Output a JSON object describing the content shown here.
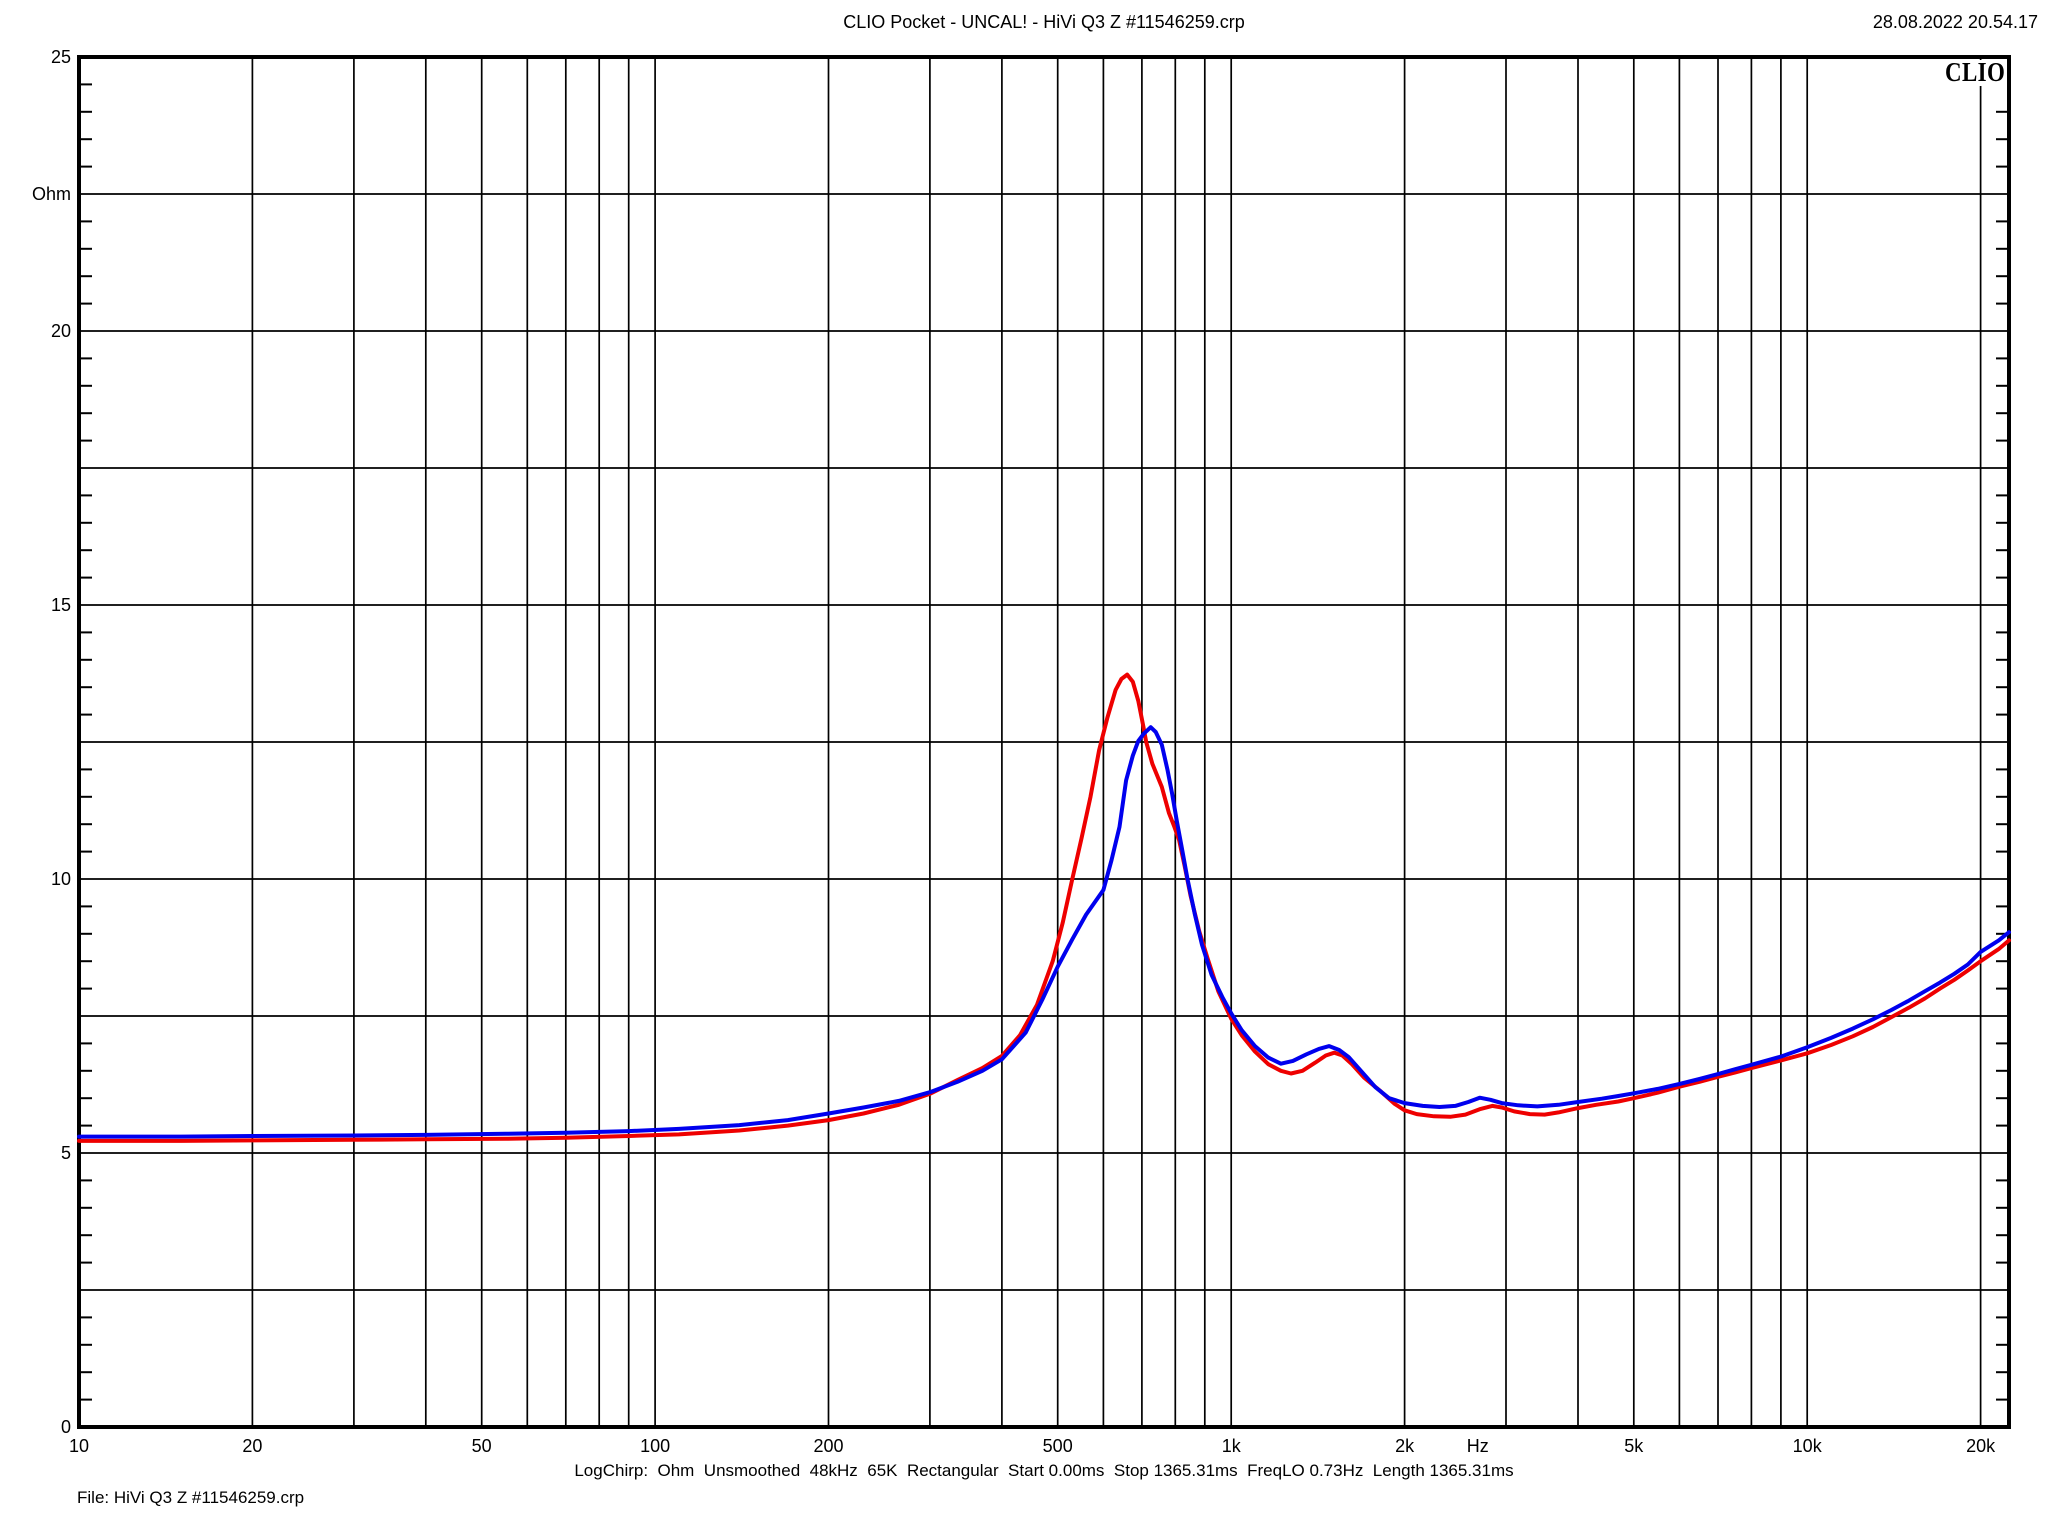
{
  "header": {
    "title": "CLIO Pocket - UNCAL! - HiVi Q3 Z #11546259.crp",
    "datetime": "28.08.2022 20.54.17"
  },
  "logo": {
    "text": "CLIO"
  },
  "footer": {
    "status_line": "LogChirp:  Ohm  Unsmoothed  48kHz  65K  Rectangular  Start 0.00ms  Stop 1365.31ms  FreqLO 0.73Hz  Length 1365.31ms",
    "file_label": "File: HiVi Q3 Z #11546259.crp"
  },
  "chart_data": {
    "type": "line",
    "title": "Impedance magnitude vs frequency",
    "grid": true,
    "legend": false,
    "x_axis": {
      "scale": "log",
      "unit": "Hz",
      "min": 10,
      "max": 22400,
      "unit_label_freq": 2680,
      "tick_labels": [
        [
          "10",
          10
        ],
        [
          "20",
          20
        ],
        [
          "50",
          50
        ],
        [
          "100",
          100
        ],
        [
          "200",
          200
        ],
        [
          "500",
          500
        ],
        [
          "1k",
          1000
        ],
        [
          "2k",
          2000
        ],
        [
          "5k",
          5000
        ],
        [
          "10k",
          10000
        ],
        [
          "20k",
          20000
        ]
      ],
      "gridlines": [
        20,
        30,
        40,
        50,
        60,
        70,
        80,
        90,
        100,
        200,
        300,
        400,
        500,
        600,
        700,
        800,
        900,
        1000,
        2000,
        3000,
        4000,
        5000,
        6000,
        7000,
        8000,
        9000,
        10000,
        20000
      ]
    },
    "y_axis": {
      "scale": "linear",
      "unit": "Ohm",
      "min": 0,
      "max": 25,
      "unit_label_value": 22.5,
      "minor_tick_step": 0.5,
      "tick_labels": [
        [
          "25",
          25
        ],
        [
          "20",
          20
        ],
        [
          "15",
          15
        ],
        [
          "10",
          10
        ],
        [
          "5",
          5
        ],
        [
          "0",
          0
        ]
      ],
      "gridlines": [
        2.5,
        5,
        7.5,
        10,
        12.5,
        15,
        17.5,
        20,
        22.5
      ]
    },
    "series": [
      {
        "name": "red-impedance-curve",
        "color": "#ee0000",
        "points": [
          [
            10,
            5.22
          ],
          [
            15,
            5.22
          ],
          [
            20,
            5.23
          ],
          [
            30,
            5.24
          ],
          [
            40,
            5.25
          ],
          [
            55,
            5.26
          ],
          [
            70,
            5.28
          ],
          [
            90,
            5.31
          ],
          [
            110,
            5.34
          ],
          [
            140,
            5.41
          ],
          [
            170,
            5.5
          ],
          [
            200,
            5.6
          ],
          [
            230,
            5.72
          ],
          [
            265,
            5.88
          ],
          [
            300,
            6.08
          ],
          [
            335,
            6.33
          ],
          [
            370,
            6.55
          ],
          [
            400,
            6.77
          ],
          [
            430,
            7.15
          ],
          [
            460,
            7.7
          ],
          [
            490,
            8.5
          ],
          [
            510,
            9.2
          ],
          [
            530,
            10.0
          ],
          [
            550,
            10.75
          ],
          [
            570,
            11.5
          ],
          [
            590,
            12.35
          ],
          [
            610,
            12.95
          ],
          [
            630,
            13.45
          ],
          [
            645,
            13.65
          ],
          [
            660,
            13.73
          ],
          [
            675,
            13.6
          ],
          [
            690,
            13.25
          ],
          [
            705,
            12.75
          ],
          [
            712,
            12.5
          ],
          [
            730,
            12.1
          ],
          [
            758,
            11.68
          ],
          [
            780,
            11.2
          ],
          [
            797,
            10.95
          ],
          [
            812,
            10.71
          ],
          [
            830,
            10.25
          ],
          [
            850,
            9.7
          ],
          [
            880,
            9.05
          ],
          [
            910,
            8.55
          ],
          [
            950,
            7.95
          ],
          [
            1000,
            7.45
          ],
          [
            1043,
            7.15
          ],
          [
            1100,
            6.85
          ],
          [
            1160,
            6.62
          ],
          [
            1220,
            6.5
          ],
          [
            1270,
            6.45
          ],
          [
            1330,
            6.5
          ],
          [
            1400,
            6.65
          ],
          [
            1460,
            6.78
          ],
          [
            1510,
            6.83
          ],
          [
            1560,
            6.78
          ],
          [
            1620,
            6.62
          ],
          [
            1700,
            6.38
          ],
          [
            1820,
            6.12
          ],
          [
            1920,
            5.9
          ],
          [
            2000,
            5.78
          ],
          [
            2100,
            5.71
          ],
          [
            2250,
            5.67
          ],
          [
            2400,
            5.66
          ],
          [
            2550,
            5.7
          ],
          [
            2700,
            5.8
          ],
          [
            2840,
            5.86
          ],
          [
            2950,
            5.83
          ],
          [
            3100,
            5.76
          ],
          [
            3300,
            5.71
          ],
          [
            3500,
            5.7
          ],
          [
            3700,
            5.74
          ],
          [
            4000,
            5.82
          ],
          [
            4300,
            5.88
          ],
          [
            4700,
            5.94
          ],
          [
            5000,
            6.0
          ],
          [
            5500,
            6.1
          ],
          [
            6000,
            6.21
          ],
          [
            6500,
            6.3
          ],
          [
            7000,
            6.39
          ],
          [
            7500,
            6.47
          ],
          [
            8000,
            6.55
          ],
          [
            9000,
            6.69
          ],
          [
            10000,
            6.82
          ],
          [
            11000,
            6.97
          ],
          [
            12000,
            7.13
          ],
          [
            13000,
            7.3
          ],
          [
            14000,
            7.48
          ],
          [
            15000,
            7.65
          ],
          [
            16000,
            7.82
          ],
          [
            17000,
            8.0
          ],
          [
            18000,
            8.16
          ],
          [
            19000,
            8.33
          ],
          [
            20000,
            8.5
          ],
          [
            21500,
            8.72
          ],
          [
            22400,
            8.88
          ]
        ]
      },
      {
        "name": "blue-impedance-curve",
        "color": "#0000ee",
        "points": [
          [
            10,
            5.3
          ],
          [
            15,
            5.3
          ],
          [
            20,
            5.31
          ],
          [
            30,
            5.32
          ],
          [
            40,
            5.33
          ],
          [
            55,
            5.35
          ],
          [
            70,
            5.37
          ],
          [
            90,
            5.4
          ],
          [
            110,
            5.44
          ],
          [
            140,
            5.51
          ],
          [
            170,
            5.6
          ],
          [
            200,
            5.72
          ],
          [
            230,
            5.83
          ],
          [
            265,
            5.95
          ],
          [
            300,
            6.11
          ],
          [
            335,
            6.3
          ],
          [
            370,
            6.5
          ],
          [
            400,
            6.71
          ],
          [
            440,
            7.2
          ],
          [
            470,
            7.8
          ],
          [
            500,
            8.4
          ],
          [
            530,
            8.9
          ],
          [
            560,
            9.35
          ],
          [
            600,
            9.8
          ],
          [
            620,
            10.35
          ],
          [
            640,
            10.95
          ],
          [
            657,
            11.8
          ],
          [
            675,
            12.25
          ],
          [
            690,
            12.52
          ],
          [
            705,
            12.65
          ],
          [
            725,
            12.77
          ],
          [
            740,
            12.68
          ],
          [
            758,
            12.45
          ],
          [
            775,
            12.0
          ],
          [
            790,
            11.55
          ],
          [
            805,
            11.05
          ],
          [
            820,
            10.6
          ],
          [
            840,
            10.0
          ],
          [
            865,
            9.35
          ],
          [
            890,
            8.8
          ],
          [
            925,
            8.25
          ],
          [
            965,
            7.85
          ],
          [
            1000,
            7.55
          ],
          [
            1043,
            7.24
          ],
          [
            1100,
            6.95
          ],
          [
            1160,
            6.74
          ],
          [
            1220,
            6.63
          ],
          [
            1280,
            6.68
          ],
          [
            1350,
            6.8
          ],
          [
            1420,
            6.9
          ],
          [
            1480,
            6.95
          ],
          [
            1540,
            6.88
          ],
          [
            1600,
            6.75
          ],
          [
            1680,
            6.5
          ],
          [
            1780,
            6.2
          ],
          [
            1880,
            6.0
          ],
          [
            2000,
            5.91
          ],
          [
            2150,
            5.86
          ],
          [
            2300,
            5.84
          ],
          [
            2450,
            5.86
          ],
          [
            2580,
            5.93
          ],
          [
            2700,
            6.01
          ],
          [
            2820,
            5.97
          ],
          [
            2950,
            5.91
          ],
          [
            3150,
            5.87
          ],
          [
            3400,
            5.85
          ],
          [
            3700,
            5.88
          ],
          [
            4000,
            5.93
          ],
          [
            4400,
            5.99
          ],
          [
            4700,
            6.04
          ],
          [
            5000,
            6.09
          ],
          [
            5500,
            6.17
          ],
          [
            6000,
            6.26
          ],
          [
            6500,
            6.35
          ],
          [
            7000,
            6.44
          ],
          [
            7500,
            6.53
          ],
          [
            8000,
            6.61
          ],
          [
            9000,
            6.76
          ],
          [
            10000,
            6.93
          ],
          [
            11000,
            7.1
          ],
          [
            12000,
            7.27
          ],
          [
            13000,
            7.44
          ],
          [
            14000,
            7.61
          ],
          [
            15000,
            7.78
          ],
          [
            16000,
            7.95
          ],
          [
            17000,
            8.11
          ],
          [
            18000,
            8.27
          ],
          [
            19000,
            8.44
          ],
          [
            20000,
            8.67
          ],
          [
            21500,
            8.88
          ],
          [
            22400,
            9.03
          ]
        ]
      }
    ]
  }
}
